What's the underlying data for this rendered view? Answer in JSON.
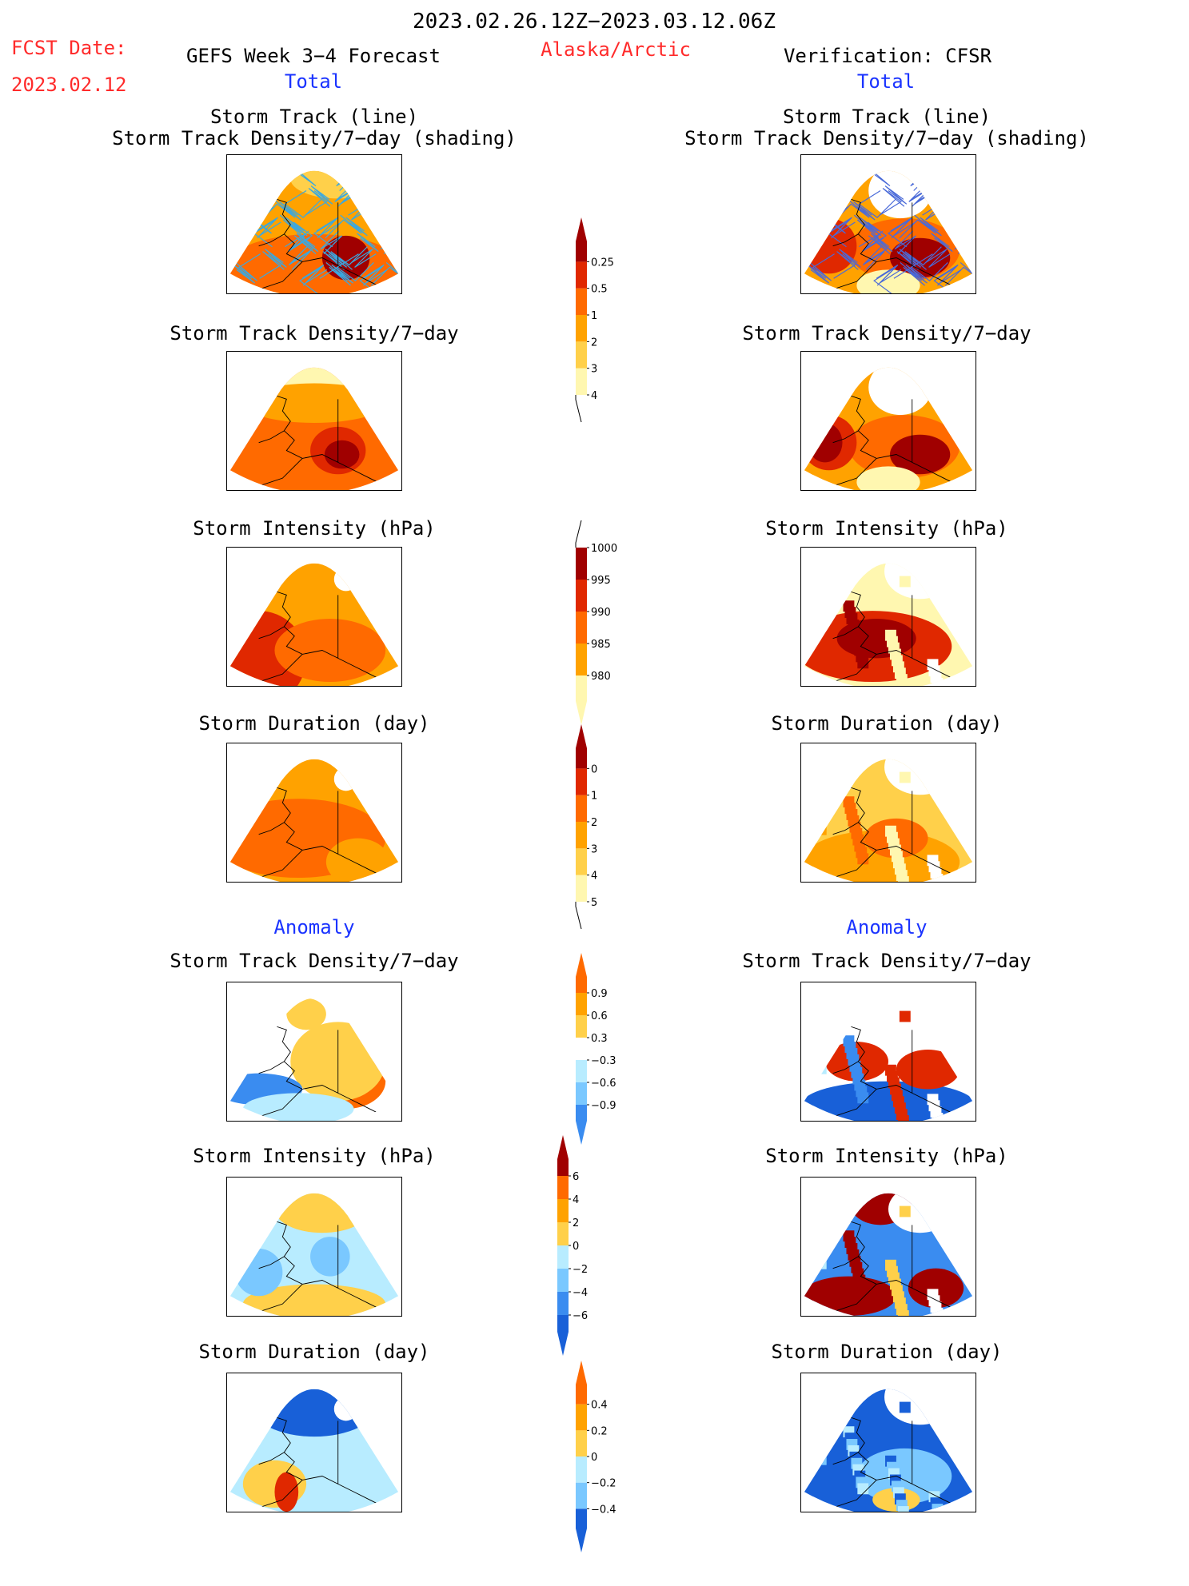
{
  "header": {
    "period": "2023.02.26.12Z−2023.03.12.06Z",
    "fcst_label": "FCST Date:",
    "fcst_date": "2023.02.12",
    "left_title": "GEFS Week 3−4 Forecast",
    "region": "Alaska/Arctic",
    "right_title": "Verification: CFSR",
    "total_left": "Total",
    "total_right": "Total",
    "anomaly_left": "Anomaly",
    "anomaly_right": "Anomaly"
  },
  "panels": {
    "track_line": "Storm Track (line)",
    "track_shading": "Storm Track Density/7−day (shading)",
    "density": "Storm Track Density/7−day",
    "intensity": "Storm Intensity (hPa)",
    "duration": "Storm Duration (day)"
  },
  "colors": {
    "c1": "#fff7b0",
    "c2": "#ffd04a",
    "c3": "#ffa200",
    "c4": "#ff6a00",
    "c5": "#e02800",
    "c6": "#a00000",
    "blue1": "#b8ecff",
    "blue2": "#7ac8ff",
    "blue3": "#3a8cf0",
    "blue4": "#1860d8",
    "track": "#3aa8e0"
  },
  "chart_data": [
    {
      "type": "colorbar",
      "name": "Storm Track Density total",
      "levels": [
        "0.25",
        "0.5",
        "1",
        "2",
        "3",
        "4"
      ]
    },
    {
      "type": "colorbar",
      "name": "Storm Intensity total",
      "levels": [
        "1000",
        "995",
        "990",
        "985",
        "980"
      ]
    },
    {
      "type": "colorbar",
      "name": "Storm Duration total",
      "levels": [
        "0",
        "1",
        "2",
        "3",
        "4",
        "5"
      ]
    },
    {
      "type": "colorbar",
      "name": "Storm Track Density anomaly",
      "levels": [
        "0.9",
        "0.6",
        "0.3",
        "−0.3",
        "−0.6",
        "−0.9"
      ]
    },
    {
      "type": "colorbar",
      "name": "Storm Intensity anomaly",
      "levels": [
        "6",
        "4",
        "2",
        "0",
        "−2",
        "−4",
        "−6"
      ]
    },
    {
      "type": "colorbar",
      "name": "Storm Duration anomaly",
      "levels": [
        "0.4",
        "0.2",
        "0",
        "−0.2",
        "−0.4"
      ]
    }
  ]
}
